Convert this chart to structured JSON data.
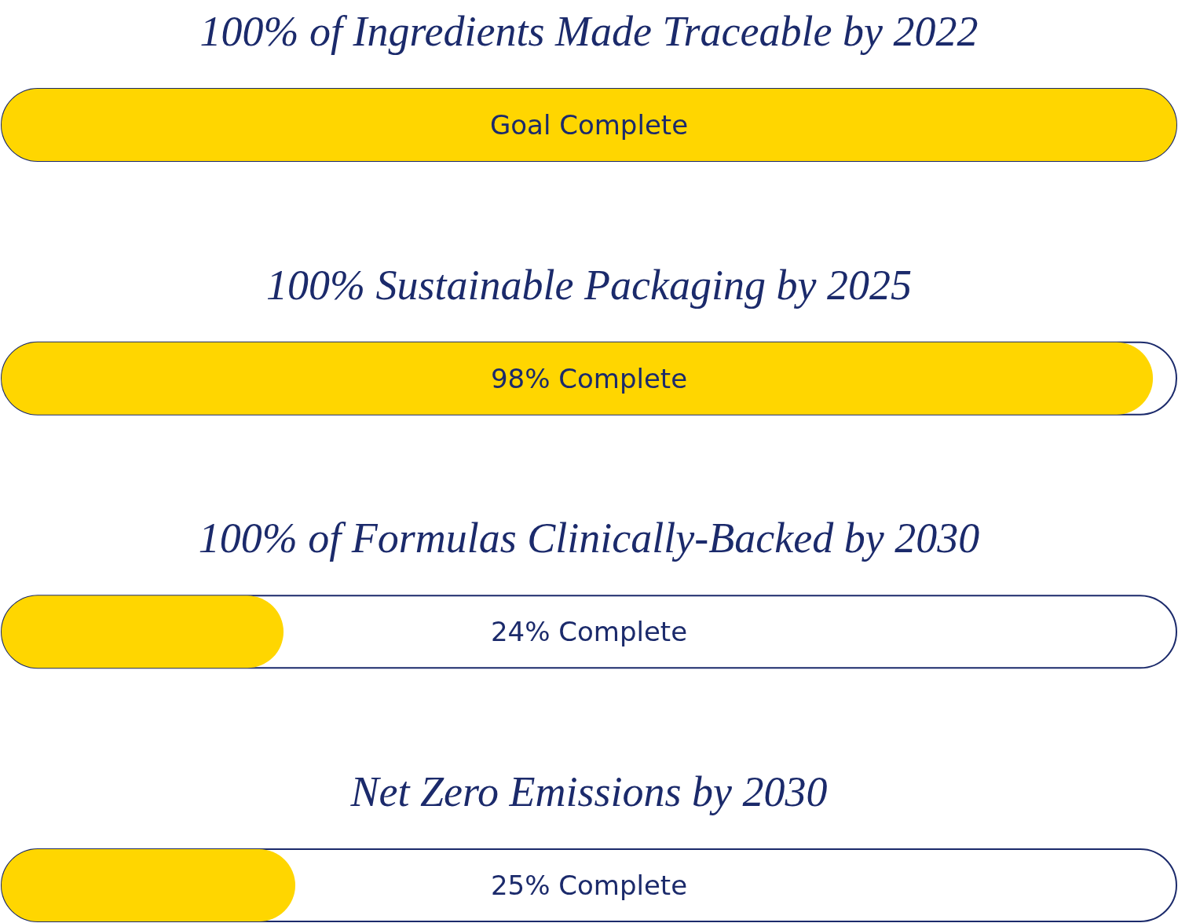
{
  "chart_data": {
    "type": "bar",
    "orientation": "horizontal",
    "categories": [
      "100% of Ingredients Made Traceable by 2022",
      "100% Sustainable Packaging by 2025",
      "100% of Formulas Clinically-Backed by 2030",
      "Net Zero Emissions by 2030"
    ],
    "values": [
      100,
      98,
      24,
      25
    ],
    "value_labels": [
      "Goal Complete",
      "98% Complete",
      "24% Complete",
      "25% Complete"
    ],
    "color": "#ffd600",
    "xlim": [
      0,
      100
    ],
    "tick_labels": "y"
  }
}
